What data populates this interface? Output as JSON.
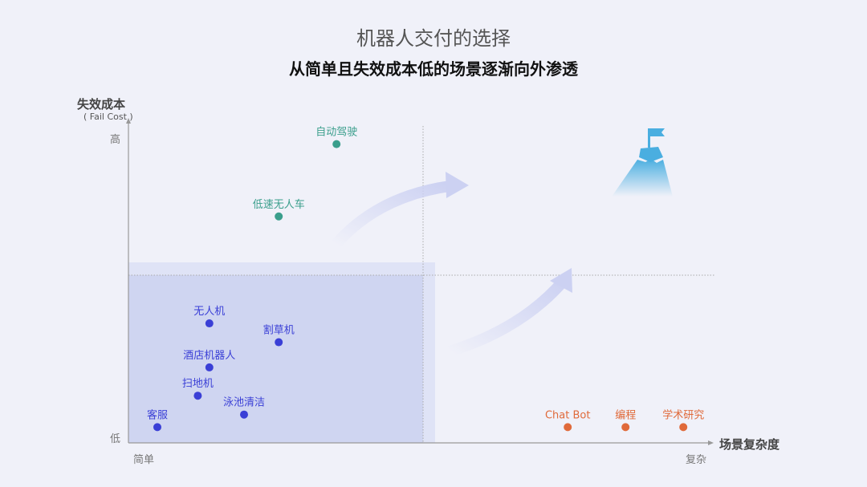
{
  "header": {
    "title": "机器人交付的选择",
    "subtitle": "从简单且失效成本低的场景逐渐向外渗透"
  },
  "colors": {
    "background": "#f0f1f9",
    "group_blue": "#3a3fd6",
    "group_green": "#3a9e8c",
    "group_orange": "#e06a3a",
    "region_fill": "#cfd5f1",
    "arrow": "#ccd1f2",
    "mountain": "#4aaee0"
  },
  "icons": [
    "mountain-flag-icon",
    "curved-arrow-icon"
  ],
  "chart_data": {
    "type": "scatter",
    "ylabel": "失效成本",
    "ylabel_en": "( Fail Cost )",
    "xlabel": "场景复杂度",
    "y_ticks": {
      "low": "低",
      "high": "高"
    },
    "x_ticks": {
      "low": "简单",
      "high": "复杂"
    },
    "xlim": [
      0,
      1
    ],
    "ylim": [
      0,
      1
    ],
    "grid": false,
    "points": [
      {
        "label": "客服",
        "x": 0.05,
        "y": 0.05,
        "color": "#3a3fd6"
      },
      {
        "label": "扫地机",
        "x": 0.12,
        "y": 0.15,
        "color": "#3a3fd6"
      },
      {
        "label": "泳池清洁",
        "x": 0.2,
        "y": 0.09,
        "color": "#3a3fd6"
      },
      {
        "label": "酒店机器人",
        "x": 0.14,
        "y": 0.24,
        "color": "#3a3fd6"
      },
      {
        "label": "割草机",
        "x": 0.26,
        "y": 0.32,
        "color": "#3a3fd6"
      },
      {
        "label": "无人机",
        "x": 0.14,
        "y": 0.38,
        "color": "#3a3fd6"
      },
      {
        "label": "低速无人车",
        "x": 0.26,
        "y": 0.72,
        "color": "#3a9e8c"
      },
      {
        "label": "自动驾驶",
        "x": 0.36,
        "y": 0.95,
        "color": "#3a9e8c"
      },
      {
        "label": "Chat Bot",
        "x": 0.76,
        "y": 0.05,
        "color": "#e06a3a"
      },
      {
        "label": "编程",
        "x": 0.86,
        "y": 0.05,
        "color": "#e06a3a"
      },
      {
        "label": "学术研究",
        "x": 0.96,
        "y": 0.05,
        "color": "#e06a3a"
      }
    ]
  }
}
